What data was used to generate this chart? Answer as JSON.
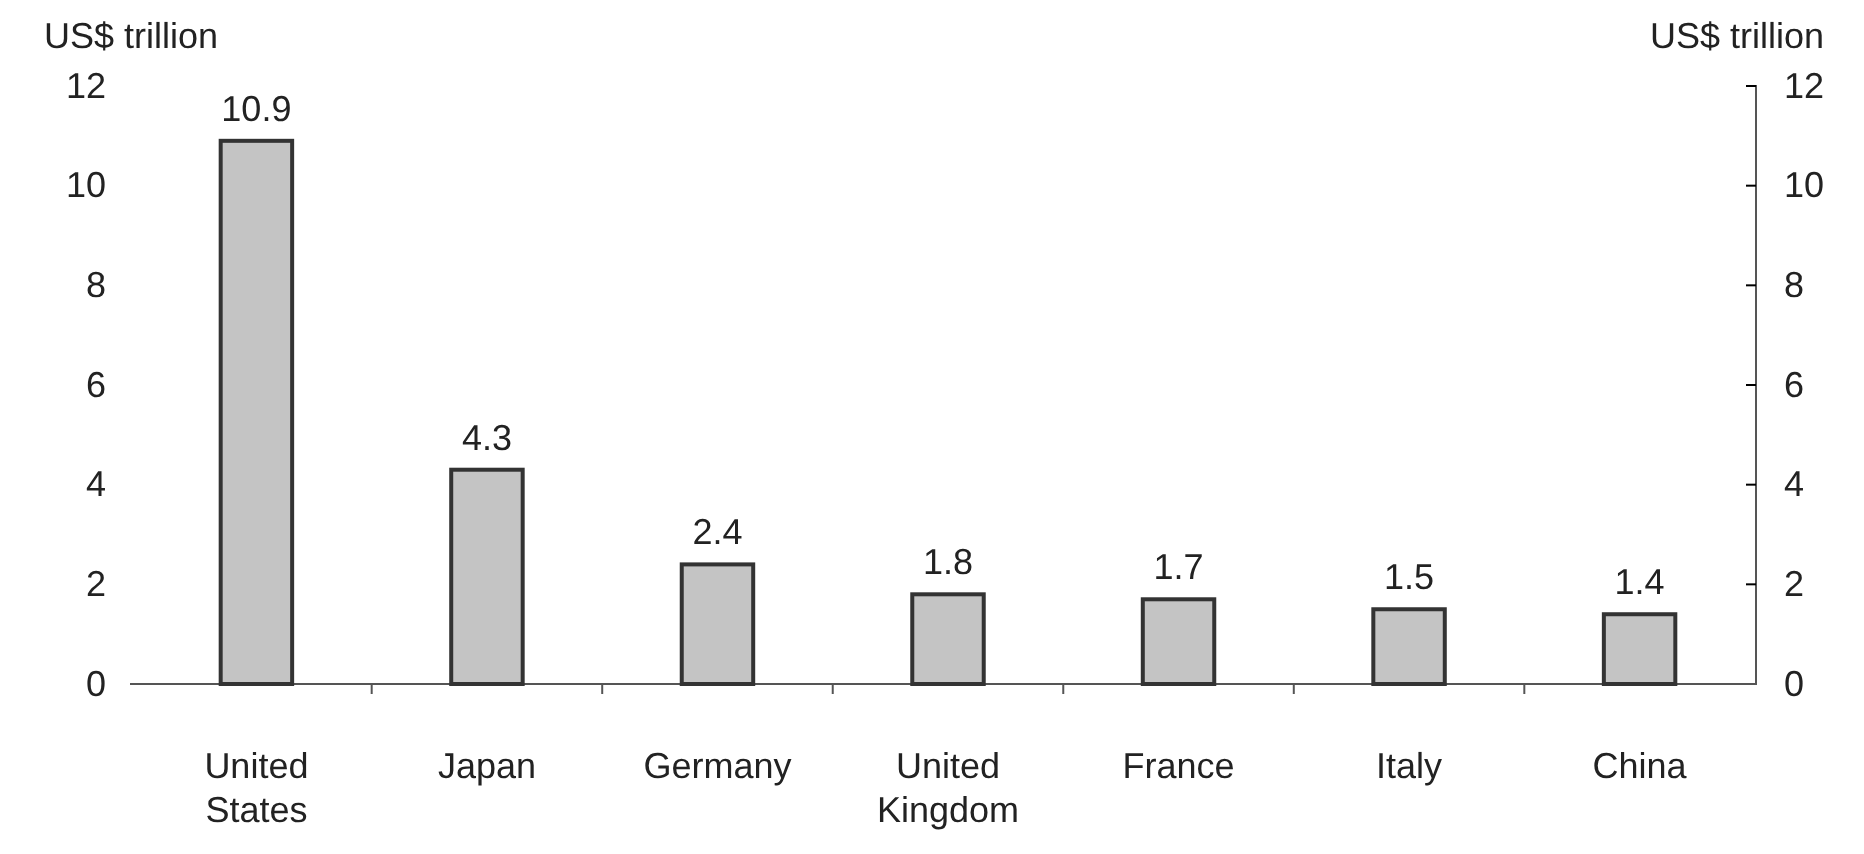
{
  "chart_data": {
    "type": "bar",
    "categories": [
      "United States",
      "Japan",
      "Germany",
      "United Kingdom",
      "France",
      "Italy",
      "China"
    ],
    "values": [
      10.9,
      4.3,
      2.4,
      1.8,
      1.7,
      1.5,
      1.4
    ],
    "color": "#c4c4c4",
    "ylabel": "US$ trillion",
    "y2label": "US$ trillion",
    "ylim": [
      0,
      12
    ],
    "yticks": [
      0,
      2,
      4,
      6,
      8,
      10,
      12
    ],
    "y2lim": [
      0,
      12
    ],
    "y2ticks": [
      0,
      2,
      4,
      6,
      8,
      10,
      12
    ],
    "data_labels": true,
    "grid": false
  }
}
